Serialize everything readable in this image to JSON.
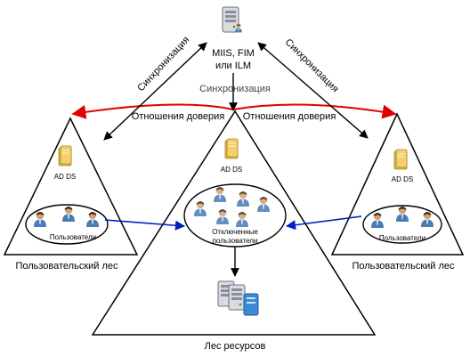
{
  "server": {
    "line1": "MIIS, FIM",
    "line2": "или ILM"
  },
  "sync_label_left": "Синхронизация",
  "sync_label_right": "Синхронизация",
  "sync_label_center": "Синхронизация",
  "trust_left": "Отношения доверия",
  "trust_right": "Отношения доверия",
  "left_forest": {
    "ad_label": "AD DS",
    "users_label": "Пользователи",
    "forest_label": "Пользовательский лес"
  },
  "right_forest": {
    "ad_label": "AD DS",
    "users_label": "Пользователи",
    "forest_label": "Пользовательский лес"
  },
  "resource_forest": {
    "ad_label": "AD DS",
    "disabled_users_line1": "Отключенные",
    "disabled_users_line2": "пользователи",
    "forest_label": "Лес ресурсов"
  },
  "colors": {
    "trust_arrow": "#e00000",
    "link_arrow": "#0020c0",
    "triangle": "#000000",
    "folder": "#f2d06b",
    "user_shirt": "#4a7bb5",
    "user_skin": "#d8a070",
    "user_hair": "#3a2a1a"
  }
}
